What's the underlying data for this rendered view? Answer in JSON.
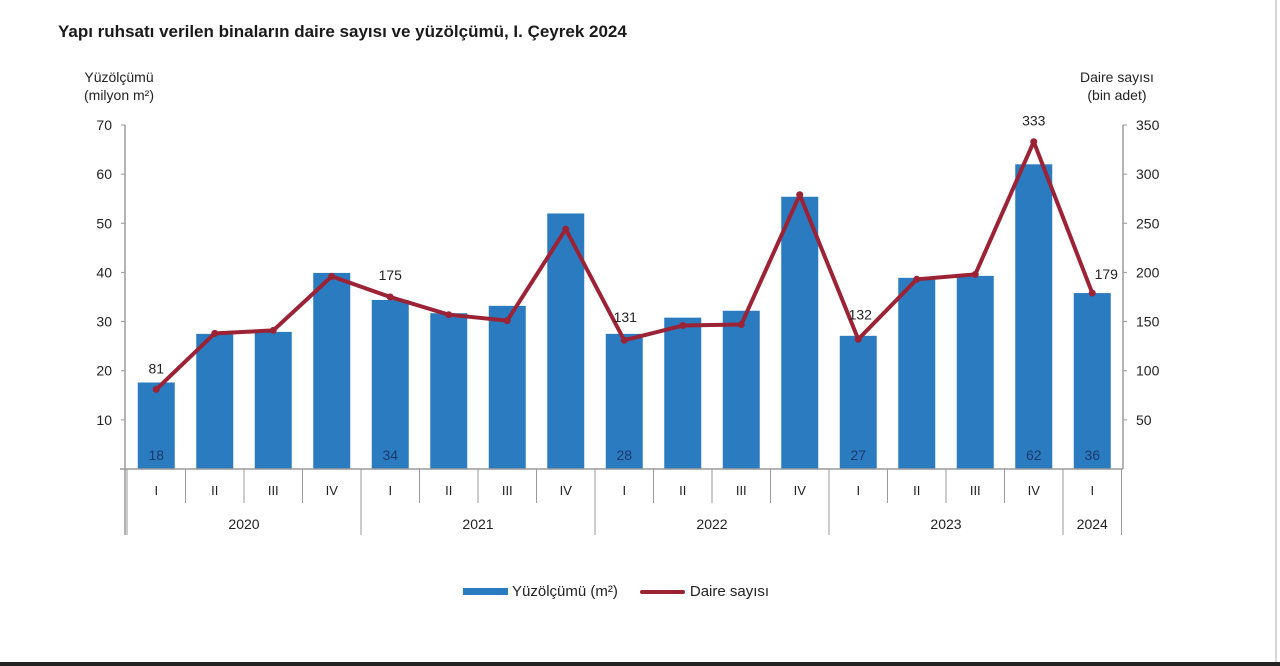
{
  "title": "Yapı ruhsatı verilen binaların daire sayısı ve yüzölçümü, I. Çeyrek 2024",
  "left_axis": {
    "title_line1": "Yüzölçümü",
    "title_line2": "(milyon m²)",
    "ticks": [
      "10",
      "20",
      "30",
      "40",
      "50",
      "60",
      "70"
    ]
  },
  "right_axis": {
    "title_line1": "Daire sayısı",
    "title_line2": "(bin adet)",
    "ticks": [
      "50",
      "100",
      "150",
      "200",
      "250",
      "300",
      "350"
    ]
  },
  "legend": {
    "bar": "Yüzölçümü (m²)",
    "line": "Daire sayısı"
  },
  "colors": {
    "bar": "#2a7bc0",
    "line": "#9b2335",
    "bar_label": "#1c3a6c"
  },
  "chart_data": {
    "type": "bar+line",
    "title": "Yapı ruhsatı verilen binaların daire sayısı ve yüzölçümü, I. Çeyrek 2024",
    "categories": [
      "2020-I",
      "2020-II",
      "2020-III",
      "2020-IV",
      "2021-I",
      "2021-II",
      "2021-III",
      "2021-IV",
      "2022-I",
      "2022-II",
      "2022-III",
      "2022-IV",
      "2023-I",
      "2023-II",
      "2023-III",
      "2023-IV",
      "2024-I"
    ],
    "quarter_labels": [
      "I",
      "II",
      "III",
      "IV",
      "I",
      "II",
      "III",
      "IV",
      "I",
      "II",
      "III",
      "IV",
      "I",
      "II",
      "III",
      "IV",
      "I"
    ],
    "years": [
      {
        "label": "2020",
        "span": 4
      },
      {
        "label": "2021",
        "span": 4
      },
      {
        "label": "2022",
        "span": 4
      },
      {
        "label": "2023",
        "span": 4
      },
      {
        "label": "2024",
        "span": 1
      }
    ],
    "series": [
      {
        "name": "Yüzölçümü (m²)",
        "type": "bar",
        "axis": "left",
        "values": [
          17.6,
          27.5,
          27.9,
          39.9,
          34.4,
          31.7,
          33.2,
          52.0,
          27.5,
          30.8,
          32.2,
          55.4,
          27.1,
          38.9,
          39.3,
          62.0,
          35.8
        ],
        "data_labels": {
          "0": "18",
          "4": "34",
          "8": "28",
          "12": "27",
          "15": "62",
          "16": "36"
        }
      },
      {
        "name": "Daire sayısı",
        "type": "line",
        "axis": "right",
        "values": [
          81,
          138,
          141,
          196,
          175,
          157,
          151,
          244,
          131,
          146,
          147,
          279,
          132,
          193,
          198,
          333,
          179
        ],
        "data_labels": {
          "0": "81",
          "4": "175",
          "8": "131",
          "12": "132",
          "15": "333",
          "16": "179"
        }
      }
    ],
    "ylabel_left": "Yüzölçümü (milyon m²)",
    "ylabel_right": "Daire sayısı (bin adet)",
    "ylim_left": [
      0,
      70
    ],
    "ylim_right": [
      0,
      350
    ],
    "grid": false,
    "legend_position": "bottom"
  }
}
